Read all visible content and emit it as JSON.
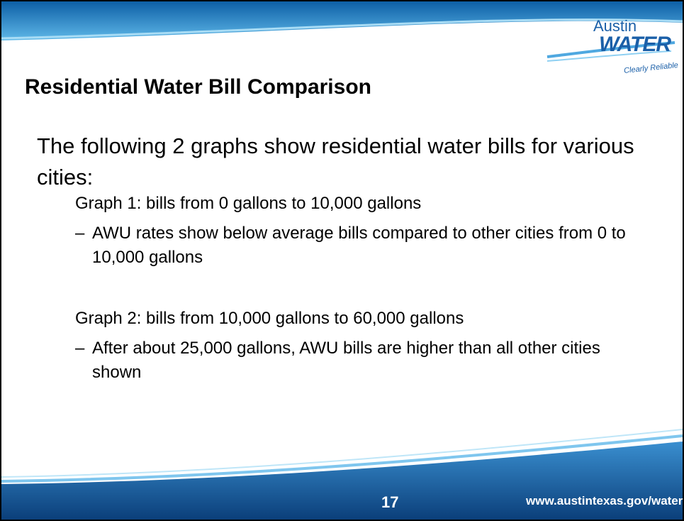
{
  "header": {
    "title": "Residential Water Bill Comparison",
    "logo": {
      "name": "Austin",
      "brand": "WATER",
      "tagline": "Clearly Reliable"
    }
  },
  "body": {
    "intro": "The following 2 graphs show residential water bills for various cities:",
    "items": [
      {
        "heading": "Graph 1:  bills from 0 gallons to 10,000 gallons",
        "bullet": {
          "marker": "–",
          "text": "AWU rates show below average bills compared to other cities from 0 to 10,000 gallons"
        }
      },
      {
        "heading": "Graph 2:  bills from 10,000 gallons to 60,000 gallons",
        "bullet": {
          "marker": "–",
          "text": "After about 25,000 gallons, AWU bills are higher than all other cities shown"
        }
      }
    ]
  },
  "footer": {
    "page": "17",
    "url": "www.austintexas.gov/water"
  }
}
